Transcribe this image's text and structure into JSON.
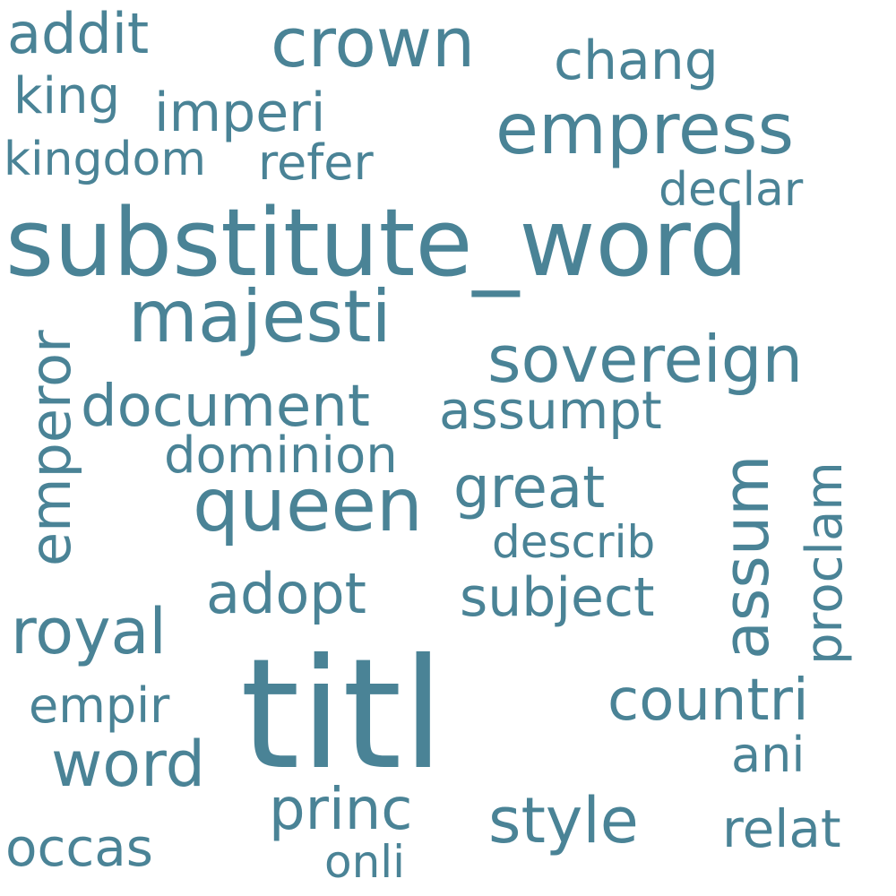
{
  "colors": {
    "background": "#ffffff",
    "word": "#4a8396"
  },
  "words": {
    "titl": "titl",
    "substitute_word": "substitute_word",
    "queen": "queen",
    "majesti": "majesti",
    "empress": "empress",
    "crown": "crown",
    "sovereign": "sovereign",
    "emperor": "emperor",
    "assum": "assum",
    "royal": "royal",
    "word": "word",
    "style": "style",
    "document": "document",
    "great": "great",
    "countri": "countri",
    "princ": "princ",
    "subject": "subject",
    "assumpt": "assumpt",
    "addit": "addit",
    "imperi": "imperi",
    "chang": "chang",
    "adopt": "adopt",
    "proclam": "proclam",
    "dominion": "dominion",
    "occas": "occas",
    "refer": "refer",
    "king": "king",
    "kingdom": "kingdom",
    "declar": "declar",
    "describ": "describ",
    "empir": "empir",
    "ani": "ani",
    "relat": "relat",
    "onli": "onli"
  }
}
